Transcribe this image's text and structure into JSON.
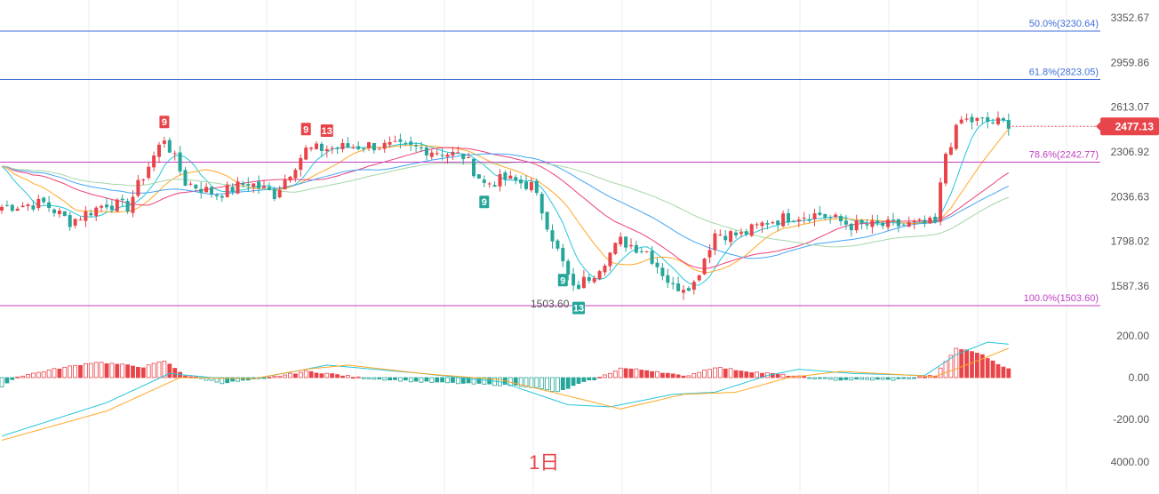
{
  "period_label": "1日",
  "colors": {
    "up": "#e8454a",
    "down": "#26a69a",
    "ma_fast": "#26c6da",
    "ma_mid": "#ffa726",
    "ma_slow1": "#ec407a",
    "ma_slow2": "#42a5f5",
    "ma_slow3": "#a5d6a7",
    "macd_dif": "#26c6da",
    "macd_dea": "#ffa726",
    "fib_blue": "#3f6fd8",
    "fib_pink": "#c040c0",
    "grid": "#eeeeee"
  },
  "price_axis": {
    "ticks": [
      "3352.67",
      "2959.86",
      "2613.07",
      "2306.92",
      "2036.63",
      "1798.02",
      "1587.36"
    ]
  },
  "macd_axis": {
    "ticks": [
      "200.00",
      "0.00",
      "-200.00",
      "4000.00"
    ]
  },
  "fib_levels": [
    {
      "label": "50.0%(3230.64)",
      "value": 3230.64,
      "color": "blue"
    },
    {
      "label": "61.8%(2823.05)",
      "value": 2823.05,
      "color": "blue"
    },
    {
      "label": "78.6%(2242.77)",
      "value": 2242.77,
      "color": "pink"
    },
    {
      "label": "100.0%(1503.60)",
      "value": 1503.6,
      "color": "pink"
    }
  ],
  "low_label": "1503.60",
  "current_price": "2477.13",
  "td_markers": [
    {
      "text": "9",
      "type": "sell",
      "index": 31
    },
    {
      "text": "9",
      "type": "sell",
      "index": 58
    },
    {
      "text": "13",
      "type": "sell",
      "index": 62
    },
    {
      "text": "9",
      "type": "buy",
      "index": 92
    },
    {
      "text": "9",
      "type": "buy",
      "index": 107
    },
    {
      "text": "13",
      "type": "buy",
      "index": 110
    }
  ],
  "chart_data": {
    "type": "candlestick",
    "title": "",
    "y_range": [
      1503.6,
      3352.67
    ],
    "y_scale": "log",
    "series": [
      {
        "name": "",
        "type": "candlestick",
        "close_anchors": [
          [
            0,
            1980
          ],
          [
            8,
            2000
          ],
          [
            13,
            1900
          ],
          [
            20,
            2000
          ],
          [
            24,
            1980
          ],
          [
            31,
            2400
          ],
          [
            35,
            2120
          ],
          [
            41,
            2050
          ],
          [
            47,
            2120
          ],
          [
            52,
            2050
          ],
          [
            58,
            2320
          ],
          [
            62,
            2330
          ],
          [
            70,
            2350
          ],
          [
            80,
            2330
          ],
          [
            88,
            2280
          ],
          [
            92,
            2110
          ],
          [
            96,
            2140
          ],
          [
            101,
            2100
          ],
          [
            106,
            1750
          ],
          [
            109,
            1570
          ],
          [
            113,
            1650
          ],
          [
            118,
            1800
          ],
          [
            123,
            1750
          ],
          [
            128,
            1580
          ],
          [
            132,
            1600
          ],
          [
            136,
            1840
          ],
          [
            141,
            1830
          ],
          [
            146,
            1900
          ],
          [
            151,
            1930
          ],
          [
            156,
            1940
          ],
          [
            162,
            1880
          ],
          [
            170,
            1880
          ],
          [
            178,
            1890
          ],
          [
            180,
            2300
          ],
          [
            183,
            2520
          ],
          [
            192,
            2500
          ]
        ]
      },
      {
        "name": "",
        "type": "line",
        "role": "ma_fast"
      },
      {
        "name": "",
        "type": "line",
        "role": "ma_mid"
      },
      {
        "name": "",
        "type": "line",
        "role": "ma_slow1"
      },
      {
        "name": "",
        "type": "line",
        "role": "ma_slow2"
      },
      {
        "name": "",
        "type": "line",
        "role": "ma_slow3"
      }
    ],
    "macd": {
      "y_range": [
        -200,
        200
      ],
      "histogram_anchors": [
        [
          0,
          -40
        ],
        [
          3,
          5
        ],
        [
          10,
          40
        ],
        [
          18,
          75
        ],
        [
          27,
          50
        ],
        [
          31,
          80
        ],
        [
          35,
          10
        ],
        [
          42,
          -25
        ],
        [
          50,
          -5
        ],
        [
          58,
          30
        ],
        [
          62,
          20
        ],
        [
          68,
          0
        ],
        [
          80,
          -20
        ],
        [
          90,
          -30
        ],
        [
          100,
          -40
        ],
        [
          106,
          -70
        ],
        [
          110,
          -30
        ],
        [
          114,
          0
        ],
        [
          118,
          45
        ],
        [
          125,
          30
        ],
        [
          130,
          5
        ],
        [
          136,
          50
        ],
        [
          142,
          30
        ],
        [
          150,
          10
        ],
        [
          158,
          -10
        ],
        [
          170,
          -10
        ],
        [
          178,
          10
        ],
        [
          182,
          140
        ],
        [
          186,
          120
        ],
        [
          192,
          40
        ]
      ],
      "dif_anchors": [
        [
          0,
          -280
        ],
        [
          20,
          -120
        ],
        [
          32,
          20
        ],
        [
          40,
          0
        ],
        [
          48,
          -5
        ],
        [
          56,
          30
        ],
        [
          62,
          60
        ],
        [
          80,
          20
        ],
        [
          95,
          -20
        ],
        [
          108,
          -130
        ],
        [
          116,
          -140
        ],
        [
          128,
          -80
        ],
        [
          136,
          -70
        ],
        [
          146,
          10
        ],
        [
          152,
          40
        ],
        [
          162,
          20
        ],
        [
          176,
          10
        ],
        [
          182,
          110
        ],
        [
          188,
          170
        ],
        [
          192,
          160
        ]
      ],
      "dea_anchors": [
        [
          0,
          -300
        ],
        [
          20,
          -160
        ],
        [
          34,
          0
        ],
        [
          48,
          -5
        ],
        [
          58,
          40
        ],
        [
          66,
          60
        ],
        [
          80,
          20
        ],
        [
          95,
          -10
        ],
        [
          110,
          -100
        ],
        [
          118,
          -150
        ],
        [
          130,
          -80
        ],
        [
          140,
          -70
        ],
        [
          150,
          0
        ],
        [
          160,
          30
        ],
        [
          178,
          5
        ],
        [
          186,
          80
        ],
        [
          192,
          140
        ]
      ]
    }
  }
}
